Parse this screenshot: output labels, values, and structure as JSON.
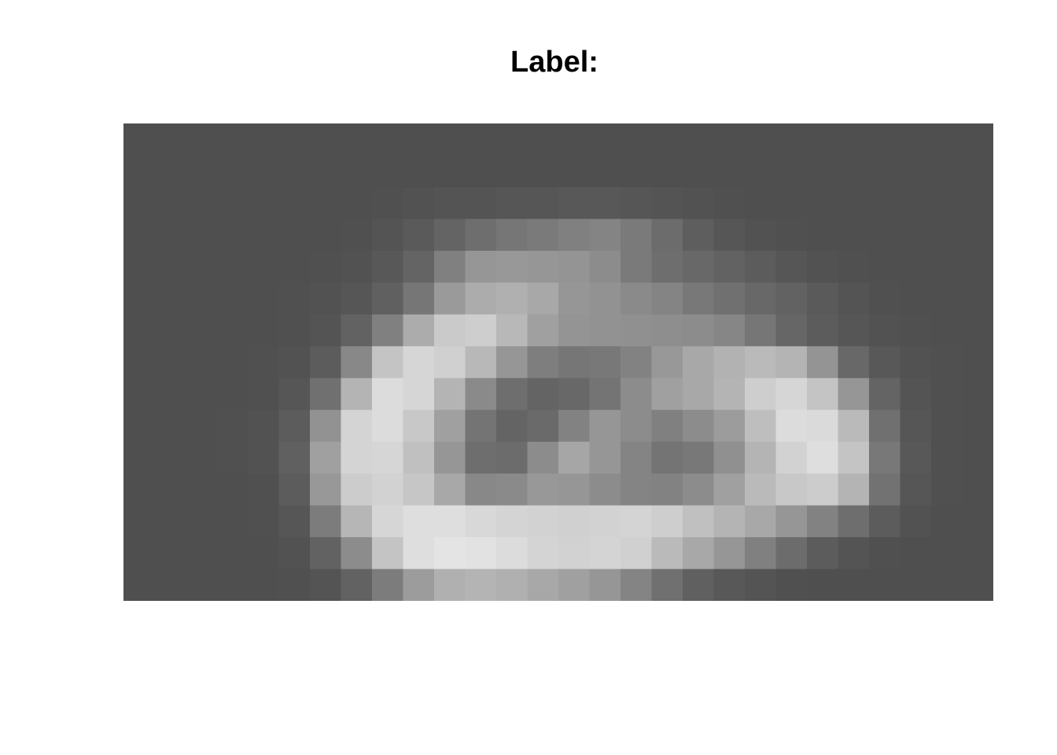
{
  "figure": {
    "title": "Label:"
  },
  "image": {
    "description_name": "grayscale-pixel-image",
    "background_color": "#4f4f4f",
    "rows": 15,
    "cols": 28,
    "gray_levels": [
      [
        79,
        79,
        79,
        79,
        79,
        79,
        79,
        79,
        79,
        79,
        79,
        79,
        79,
        79,
        79,
        79,
        79,
        79,
        79,
        79,
        79,
        79,
        79,
        79,
        79,
        79,
        79,
        79
      ],
      [
        79,
        79,
        79,
        79,
        79,
        79,
        79,
        79,
        79,
        79,
        79,
        79,
        79,
        79,
        79,
        79,
        79,
        79,
        79,
        79,
        79,
        79,
        79,
        79,
        79,
        79,
        79,
        79
      ],
      [
        79,
        79,
        79,
        79,
        79,
        79,
        79,
        79,
        80,
        82,
        84,
        84,
        86,
        86,
        88,
        88,
        86,
        84,
        82,
        80,
        79,
        79,
        79,
        79,
        79,
        79,
        79,
        79
      ],
      [
        79,
        79,
        79,
        79,
        79,
        79,
        79,
        80,
        84,
        90,
        100,
        110,
        118,
        122,
        128,
        132,
        122,
        108,
        94,
        86,
        82,
        80,
        79,
        79,
        79,
        79,
        79,
        79
      ],
      [
        79,
        79,
        79,
        79,
        79,
        79,
        80,
        82,
        88,
        100,
        128,
        150,
        152,
        150,
        148,
        140,
        122,
        110,
        104,
        98,
        92,
        86,
        82,
        80,
        79,
        79,
        79,
        79
      ],
      [
        79,
        79,
        79,
        79,
        79,
        80,
        82,
        86,
        96,
        118,
        154,
        172,
        176,
        168,
        150,
        146,
        138,
        132,
        120,
        112,
        104,
        98,
        90,
        84,
        80,
        79,
        79,
        79
      ],
      [
        79,
        79,
        79,
        79,
        79,
        80,
        84,
        98,
        128,
        172,
        202,
        206,
        184,
        160,
        148,
        146,
        144,
        142,
        140,
        134,
        118,
        102,
        92,
        86,
        82,
        80,
        79,
        79
      ],
      [
        79,
        79,
        79,
        79,
        80,
        82,
        92,
        136,
        196,
        214,
        208,
        184,
        150,
        126,
        118,
        120,
        130,
        152,
        168,
        178,
        186,
        180,
        148,
        104,
        88,
        82,
        80,
        79
      ],
      [
        79,
        79,
        79,
        79,
        80,
        86,
        112,
        180,
        220,
        214,
        180,
        138,
        110,
        100,
        104,
        116,
        140,
        160,
        168,
        180,
        206,
        214,
        196,
        150,
        100,
        84,
        80,
        79
      ],
      [
        79,
        79,
        79,
        80,
        82,
        92,
        146,
        212,
        220,
        200,
        160,
        116,
        100,
        106,
        130,
        150,
        140,
        128,
        140,
        156,
        190,
        220,
        218,
        186,
        112,
        86,
        80,
        79
      ],
      [
        79,
        79,
        79,
        80,
        82,
        96,
        160,
        212,
        214,
        192,
        150,
        110,
        108,
        140,
        166,
        150,
        132,
        116,
        120,
        144,
        180,
        210,
        222,
        196,
        120,
        88,
        80,
        79
      ],
      [
        79,
        79,
        79,
        79,
        80,
        92,
        152,
        204,
        210,
        198,
        168,
        136,
        138,
        152,
        150,
        140,
        132,
        130,
        140,
        160,
        186,
        200,
        204,
        180,
        114,
        86,
        80,
        79
      ],
      [
        79,
        79,
        79,
        79,
        80,
        86,
        124,
        182,
        214,
        222,
        222,
        216,
        212,
        210,
        208,
        210,
        212,
        206,
        192,
        180,
        168,
        150,
        130,
        110,
        92,
        82,
        79,
        79
      ],
      [
        79,
        79,
        79,
        79,
        79,
        82,
        98,
        140,
        196,
        222,
        228,
        226,
        220,
        212,
        210,
        212,
        208,
        186,
        168,
        150,
        128,
        108,
        92,
        84,
        80,
        79,
        79,
        79
      ],
      [
        79,
        79,
        79,
        79,
        79,
        80,
        84,
        98,
        124,
        156,
        176,
        180,
        176,
        168,
        160,
        150,
        132,
        112,
        96,
        88,
        84,
        80,
        79,
        79,
        79,
        79,
        79,
        79
      ]
    ]
  }
}
